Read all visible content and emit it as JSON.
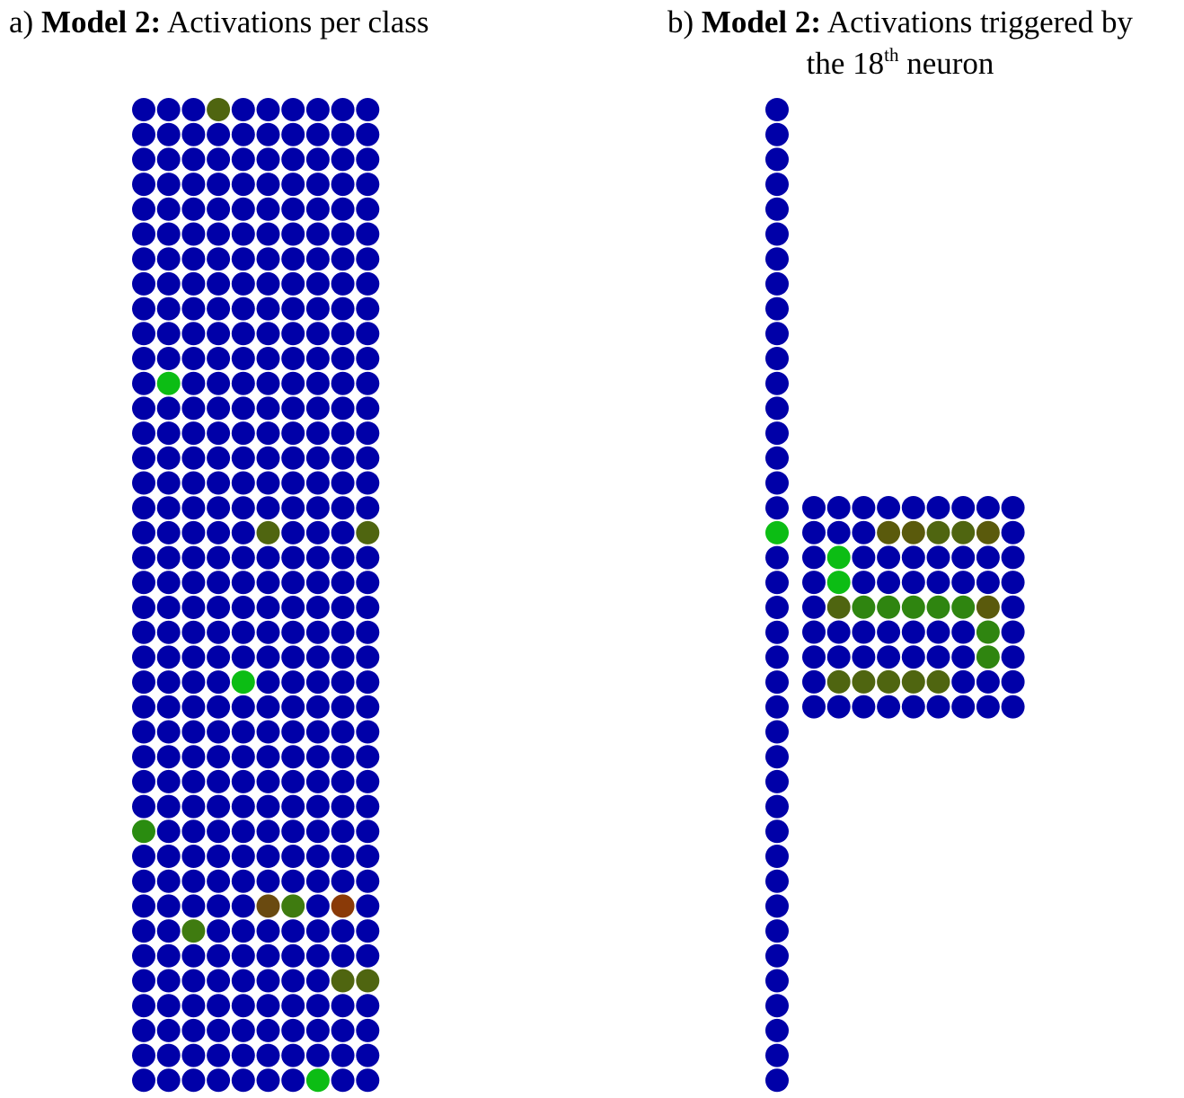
{
  "panel_a": {
    "title_prefix": "a) ",
    "title_bold": "Model 2:",
    "title_rest": " Activations per class",
    "grid": {
      "columns": 10,
      "rows": 40
    },
    "highlights": [
      {
        "row": 0,
        "col": 3,
        "color": "#4f6510"
      },
      {
        "row": 11,
        "col": 1,
        "color": "#0cbd14"
      },
      {
        "row": 17,
        "col": 5,
        "color": "#4f6510"
      },
      {
        "row": 17,
        "col": 9,
        "color": "#4f6510"
      },
      {
        "row": 23,
        "col": 4,
        "color": "#0cbd14"
      },
      {
        "row": 29,
        "col": 0,
        "color": "#2a8c10"
      },
      {
        "row": 32,
        "col": 5,
        "color": "#6a4a10"
      },
      {
        "row": 32,
        "col": 6,
        "color": "#3f7b10"
      },
      {
        "row": 32,
        "col": 8,
        "color": "#8a3a08"
      },
      {
        "row": 33,
        "col": 2,
        "color": "#3f7b10"
      },
      {
        "row": 35,
        "col": 8,
        "color": "#4f6510"
      },
      {
        "row": 35,
        "col": 9,
        "color": "#4f6510"
      },
      {
        "row": 39,
        "col": 7,
        "color": "#0cbd14"
      }
    ]
  },
  "panel_b": {
    "title_prefix": "b) ",
    "title_bold": "Model 2:",
    "title_line1_rest": " Activations triggered by",
    "title_line2_pre": "the 18",
    "title_line2_sup": "th",
    "title_line2_post": " neuron",
    "column": {
      "rows": 40,
      "highlight_row": 17,
      "highlight_color": "#0cbd14"
    },
    "grid": {
      "columns": 9,
      "rows": 9
    },
    "highlights": [
      {
        "row": 1,
        "col": 3,
        "color": "#5a5a0c"
      },
      {
        "row": 1,
        "col": 4,
        "color": "#5a5a0c"
      },
      {
        "row": 1,
        "col": 5,
        "color": "#4f6510"
      },
      {
        "row": 1,
        "col": 6,
        "color": "#4f6510"
      },
      {
        "row": 1,
        "col": 7,
        "color": "#5a5a0c"
      },
      {
        "row": 2,
        "col": 1,
        "color": "#0cbd14"
      },
      {
        "row": 3,
        "col": 1,
        "color": "#0cbd14"
      },
      {
        "row": 4,
        "col": 1,
        "color": "#4f6510"
      },
      {
        "row": 4,
        "col": 2,
        "color": "#2f8510"
      },
      {
        "row": 4,
        "col": 3,
        "color": "#2f8510"
      },
      {
        "row": 4,
        "col": 4,
        "color": "#2f8510"
      },
      {
        "row": 4,
        "col": 5,
        "color": "#2f8510"
      },
      {
        "row": 4,
        "col": 6,
        "color": "#2f8510"
      },
      {
        "row": 4,
        "col": 7,
        "color": "#5a5a0c"
      },
      {
        "row": 5,
        "col": 7,
        "color": "#2f8510"
      },
      {
        "row": 6,
        "col": 7,
        "color": "#2f8510"
      },
      {
        "row": 7,
        "col": 1,
        "color": "#4f6510"
      },
      {
        "row": 7,
        "col": 2,
        "color": "#4f6510"
      },
      {
        "row": 7,
        "col": 3,
        "color": "#4f6510"
      },
      {
        "row": 7,
        "col": 4,
        "color": "#4f6510"
      },
      {
        "row": 7,
        "col": 5,
        "color": "#4f6510"
      }
    ]
  },
  "colors": {
    "inactive": "#0000a8"
  }
}
